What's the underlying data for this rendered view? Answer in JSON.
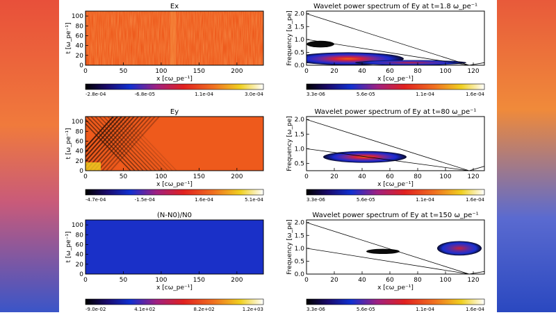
{
  "background": {
    "left_color": "#e8503a",
    "right_color": "#3a55c8"
  },
  "chart_data": [
    {
      "type": "heatmap",
      "title": "Ex",
      "xlabel": "x [cω_pe⁻¹]",
      "ylabel": "t [ω_pe⁻¹]",
      "xlim": [
        0,
        235
      ],
      "ylim": [
        0,
        110
      ],
      "xticks": [
        "0",
        "50",
        "100",
        "150",
        "200"
      ],
      "yticks": [
        "0",
        "20",
        "40",
        "60",
        "80",
        "100"
      ],
      "colorbar": [
        "-2.8e-04",
        "-6.8e-05",
        "1.1e-04",
        "3.0e-04"
      ],
      "pattern": "noise"
    },
    {
      "type": "heatmap",
      "title": "Wavelet power spectrum of Ey at t=1.8 ω_pe⁻¹",
      "xlabel": "x [cω_pe⁻¹]",
      "ylabel": "Frequency [ω_pe]",
      "xlim": [
        0,
        128
      ],
      "ylim": [
        0,
        2.1
      ],
      "xticks": [
        "0",
        "20",
        "40",
        "60",
        "80",
        "100",
        "120"
      ],
      "yticks": [
        "0.0",
        "0.5",
        "1.0",
        "1.5",
        "2.0"
      ],
      "colorbar": [
        "3.3e-06",
        "5.6e-05",
        "1.1e-04",
        "1.6e-04"
      ],
      "lines": [
        [
          [
            0,
            2.0
          ],
          [
            117,
            0
          ]
        ],
        [
          [
            0,
            1.0
          ],
          [
            117,
            0
          ]
        ],
        [
          [
            117,
            0
          ],
          [
            128,
            0.1
          ]
        ]
      ],
      "blobs": [
        {
          "cx": 10,
          "cy": 0.82,
          "rx": 10,
          "ry": 0.13,
          "peak": 0.0
        },
        {
          "cx": 30,
          "cy": 0.25,
          "rx": 40,
          "ry": 0.25,
          "peak": 0.9
        },
        {
          "cx": 75,
          "cy": 0.1,
          "rx": 40,
          "ry": 0.1,
          "peak": 0.4
        }
      ]
    },
    {
      "type": "heatmap",
      "title": "Ey",
      "xlabel": "x [cω_pe⁻¹]",
      "ylabel": "t [ω_pe⁻¹]",
      "xlim": [
        0,
        235
      ],
      "ylim": [
        0,
        110
      ],
      "xticks": [
        "0",
        "50",
        "100",
        "150",
        "200"
      ],
      "yticks": [
        "0",
        "20",
        "40",
        "60",
        "80",
        "100"
      ],
      "colorbar": [
        "-4.7e-04",
        "-1.5e-04",
        "1.6e-04",
        "5.1e-04"
      ],
      "pattern": "stripes"
    },
    {
      "type": "heatmap",
      "title": "Wavelet power spectrum of Ey at t=80 ω_pe⁻¹",
      "xlabel": "x [cω_pe⁻¹]",
      "ylabel": "Frequency [ω_pe]",
      "xlim": [
        0,
        128
      ],
      "ylim": [
        0.25,
        2.1
      ],
      "xticks": [
        "0",
        "20",
        "40",
        "60",
        "80",
        "100",
        "120"
      ],
      "yticks": [
        "0.5",
        "1.0",
        "1.5",
        "2.0"
      ],
      "colorbar": [
        "3.3e-06",
        "5.6e-05",
        "1.1e-04",
        "1.6e-04"
      ],
      "lines": [
        [
          [
            0,
            2.0
          ],
          [
            117,
            0.25
          ]
        ],
        [
          [
            0,
            1.0
          ],
          [
            117,
            0.25
          ]
        ],
        [
          [
            117,
            0.25
          ],
          [
            128,
            0.4
          ]
        ]
      ],
      "blobs": [
        {
          "cx": 42,
          "cy": 0.72,
          "rx": 30,
          "ry": 0.2,
          "peak": 1.0
        }
      ]
    },
    {
      "type": "heatmap",
      "title": "(N-N0)/N0",
      "xlabel": "x [cω_pe⁻¹]",
      "ylabel": "t [ω_pe⁻¹]",
      "xlim": [
        0,
        235
      ],
      "ylim": [
        0,
        110
      ],
      "xticks": [
        "0",
        "50",
        "100",
        "150",
        "200"
      ],
      "yticks": [
        "0",
        "20",
        "40",
        "60",
        "80",
        "100"
      ],
      "colorbar": [
        "-9.0e-02",
        "4.1e+02",
        "8.2e+02",
        "1.2e+03"
      ],
      "pattern": "flat"
    },
    {
      "type": "heatmap",
      "title": "Wavelet power spectrum of Ey at t=150 ω_pe⁻¹",
      "xlabel": "x [cω_pe⁻¹]",
      "ylabel": "Frequency [ω_pe]",
      "xlim": [
        0,
        128
      ],
      "ylim": [
        0,
        2.1
      ],
      "xticks": [
        "0",
        "20",
        "40",
        "60",
        "80",
        "100",
        "120"
      ],
      "yticks": [
        "0.0",
        "0.5",
        "1.0",
        "1.5",
        "2.0"
      ],
      "colorbar": [
        "3.3e-06",
        "5.6e-05",
        "1.1e-04",
        "1.6e-04"
      ],
      "lines": [
        [
          [
            0,
            2.0
          ],
          [
            117,
            0
          ]
        ],
        [
          [
            0,
            1.0
          ],
          [
            117,
            0
          ]
        ],
        [
          [
            117,
            0
          ],
          [
            128,
            0.1
          ]
        ]
      ],
      "blobs": [
        {
          "cx": 55,
          "cy": 0.88,
          "rx": 12,
          "ry": 0.1,
          "peak": 0.0
        },
        {
          "cx": 110,
          "cy": 1.0,
          "rx": 16,
          "ry": 0.28,
          "peak": 0.85
        }
      ]
    }
  ]
}
